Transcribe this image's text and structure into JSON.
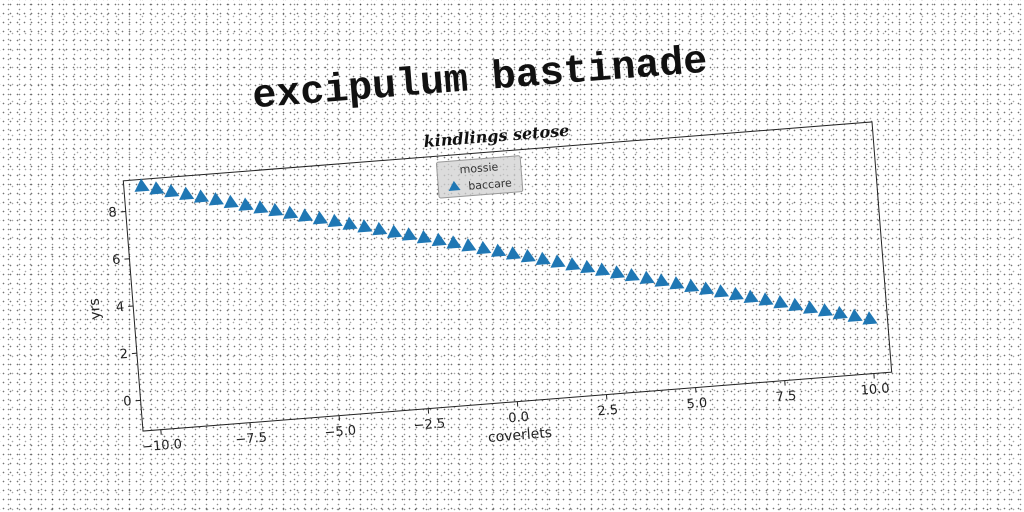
{
  "page": {
    "main_title": "excipulum bastinade"
  },
  "chart_data": {
    "type": "scatter",
    "title": "kindlings setose",
    "xlabel": "coverlets",
    "ylabel": "yrs",
    "xlim": [
      -10.5,
      10.5
    ],
    "ylim": [
      -1.3,
      9.3
    ],
    "xticks": [
      -10.0,
      -7.5,
      -5.0,
      -2.5,
      0.0,
      2.5,
      5.0,
      7.5,
      10.0
    ],
    "xtick_labels": [
      "−10.0",
      "−7.5",
      "−5.0",
      "−2.5",
      "0.0",
      "2.5",
      "5.0",
      "7.5",
      "10.0"
    ],
    "yticks": [
      0,
      2,
      4,
      6,
      8
    ],
    "ytick_labels": [
      "0",
      "2",
      "4",
      "6",
      "8"
    ],
    "grid": false,
    "legend": {
      "title": "mossie",
      "placement": "upper center",
      "entries": [
        "baccare"
      ]
    },
    "series": [
      {
        "name": "baccare",
        "marker": "triangle-up",
        "color": "#1f77b4",
        "x_start": -10.0,
        "x_end": 10.0,
        "y_start": 9.0,
        "y_end": 1.0,
        "n_points": 50
      }
    ],
    "rotation_deg": -4.5
  }
}
